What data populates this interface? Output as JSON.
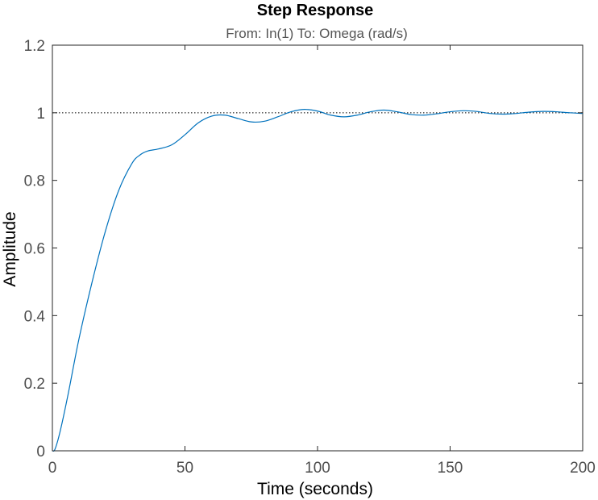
{
  "colors": {
    "line": "#0072bd",
    "axes": "#262626",
    "reference_line": "#000000",
    "background": "#ffffff"
  },
  "chart_data": {
    "type": "line",
    "title": "Step Response",
    "subtitle": "From: In(1)  To: Omega (rad/s)",
    "xlabel": "Time (seconds)",
    "ylabel": "Amplitude",
    "xlim": [
      0,
      200
    ],
    "ylim": [
      0,
      1.2
    ],
    "xticks": [
      "0",
      "50",
      "100",
      "150",
      "200"
    ],
    "yticks": [
      "0",
      "0.2",
      "0.4",
      "0.6",
      "0.8",
      "1",
      "1.2"
    ],
    "grid": false,
    "reference_line": {
      "y": 1,
      "style": "dotted"
    },
    "series": [
      {
        "x": [
          0,
          1,
          3,
          6,
          10,
          15,
          20,
          25,
          30,
          33,
          36,
          40,
          45,
          50,
          55,
          60,
          65,
          70,
          75,
          80,
          85,
          90,
          95,
          100,
          105,
          110,
          115,
          120,
          125,
          130,
          135,
          140,
          145,
          150,
          155,
          160,
          165,
          170,
          175,
          180,
          185,
          190,
          195,
          200
        ],
        "y": [
          0,
          0.005,
          0.06,
          0.17,
          0.33,
          0.5,
          0.65,
          0.77,
          0.85,
          0.875,
          0.887,
          0.893,
          0.905,
          0.935,
          0.97,
          0.99,
          0.993,
          0.983,
          0.973,
          0.975,
          0.988,
          1.003,
          1.01,
          1.005,
          0.993,
          0.988,
          0.993,
          1.003,
          1.008,
          1.003,
          0.995,
          0.993,
          0.997,
          1.003,
          1.006,
          1.004,
          0.998,
          0.996,
          0.998,
          1.002,
          1.004,
          1.003,
          1.0,
          0.998
        ]
      }
    ]
  }
}
